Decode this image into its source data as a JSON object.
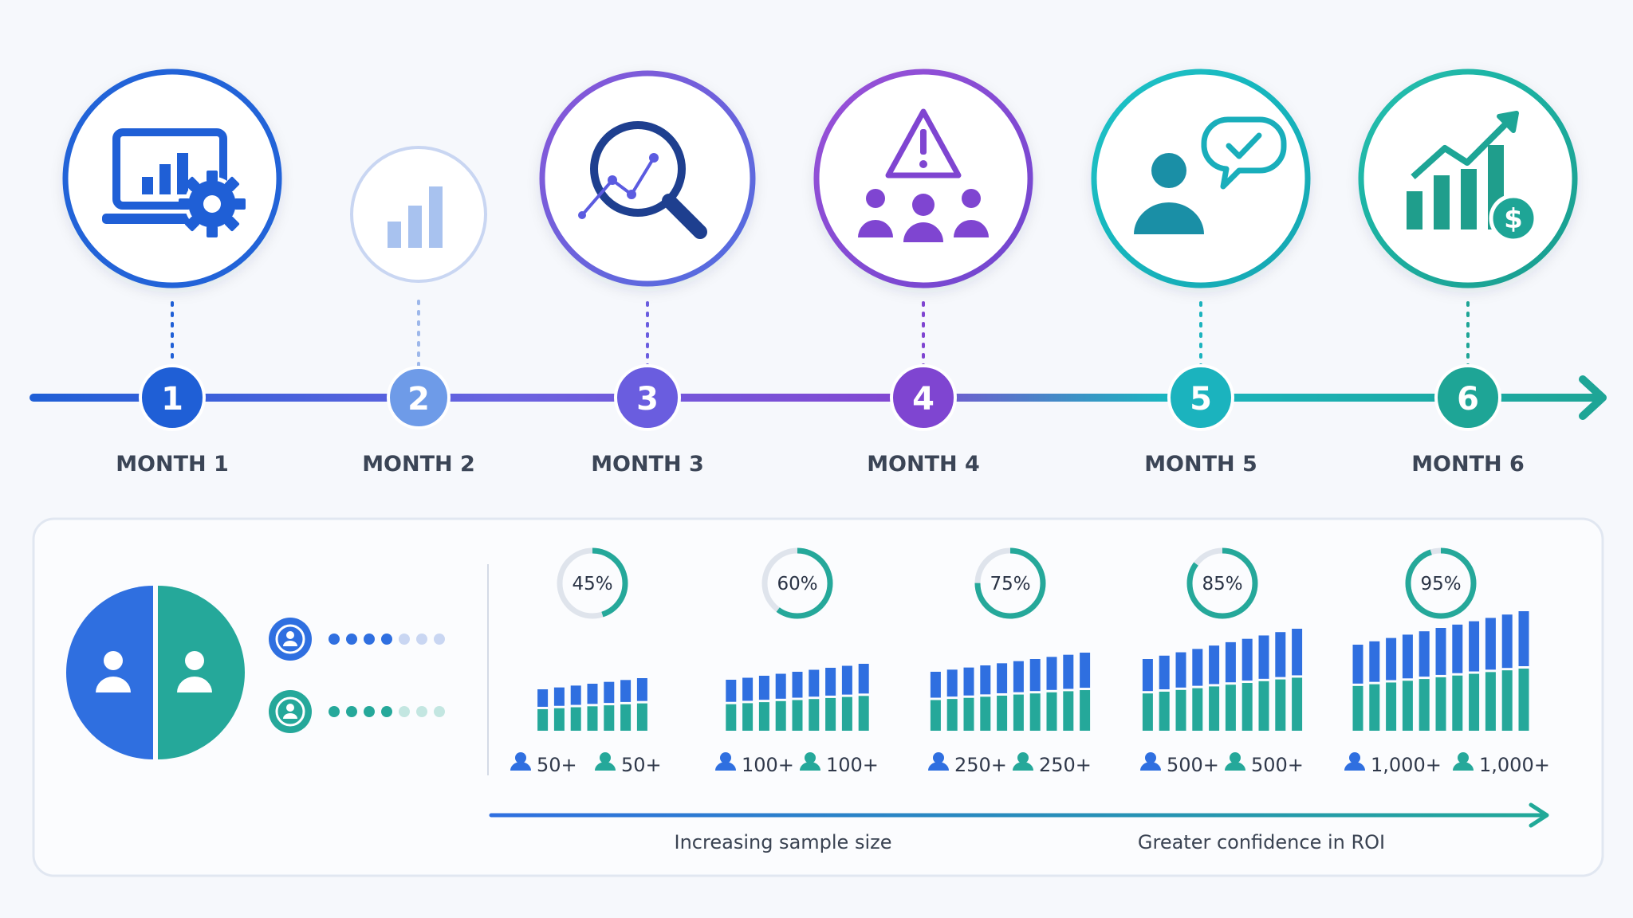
{
  "timeline": {
    "steps": [
      {
        "number": "1",
        "label": "MONTH 1",
        "icon": "laptop-chart-gear-icon",
        "color": "#1f5fd6"
      },
      {
        "number": "2",
        "label": "MONTH 2",
        "icon": "bar-chart-icon",
        "color": "#6e9be8"
      },
      {
        "number": "3",
        "label": "MONTH 3",
        "icon": "magnifier-trend-icon",
        "color": "#6a5ddf"
      },
      {
        "number": "4",
        "label": "MONTH 4",
        "icon": "warning-group-icon",
        "color": "#7f45d1"
      },
      {
        "number": "5",
        "label": "MONTH 5",
        "icon": "person-check-bubble-icon",
        "color": "#1bb3be"
      },
      {
        "number": "6",
        "label": "MONTH 6",
        "icon": "growth-dollar-icon",
        "color": "#1ea596"
      }
    ]
  },
  "panel": {
    "groups": [
      {
        "name": "group-a",
        "color": "#2f6fe0",
        "progress_dots_filled": 4,
        "progress_dots_total": 7
      },
      {
        "name": "group-b",
        "color": "#25a89a",
        "progress_dots_filled": 4,
        "progress_dots_total": 7
      }
    ],
    "stages": [
      {
        "percent": "45%",
        "percent_value": 45,
        "group_a_count": "50+",
        "group_b_count": "50+"
      },
      {
        "percent": "60%",
        "percent_value": 60,
        "group_a_count": "100+",
        "group_b_count": "100+"
      },
      {
        "percent": "75%",
        "percent_value": 75,
        "group_a_count": "250+",
        "group_b_count": "250+"
      },
      {
        "percent": "85%",
        "percent_value": 85,
        "group_a_count": "500+",
        "group_b_count": "500+"
      },
      {
        "percent": "95%",
        "percent_value": 95,
        "group_a_count": "1,000+",
        "group_b_count": "1,000+"
      }
    ],
    "captions": {
      "left": "Increasing sample size",
      "right": "Greater confidence in ROI"
    }
  },
  "colors": {
    "blue": "#2f6fe0",
    "teal": "#25a89a",
    "purple": "#7f45d1"
  }
}
